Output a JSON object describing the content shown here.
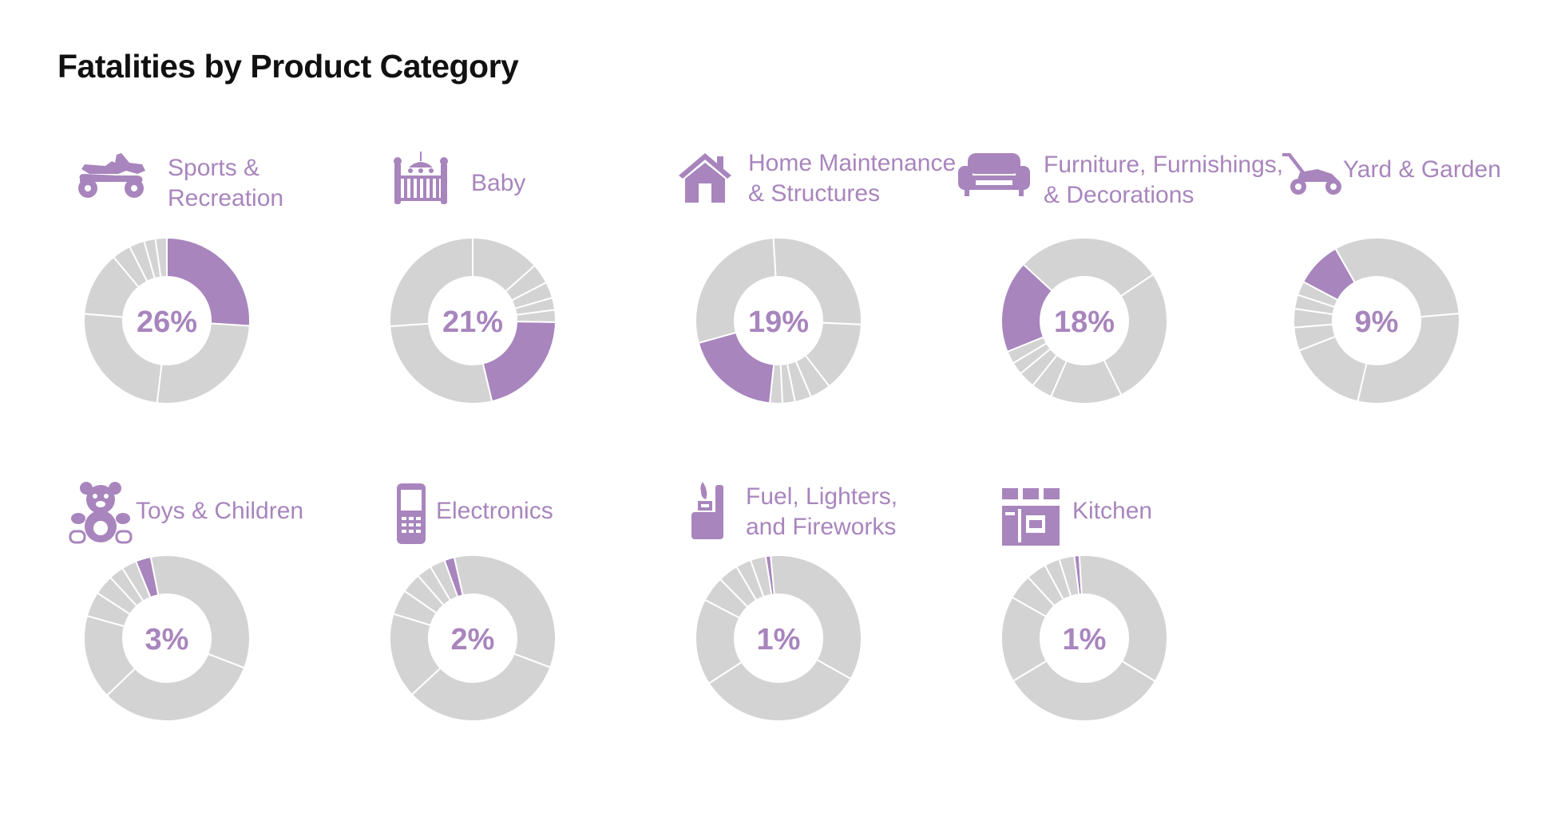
{
  "title": "Fatalities by Product Category",
  "colors": {
    "highlight": "#a885bd",
    "segment": "#d3d3d4",
    "divider": "#ffffff"
  },
  "chart_data": {
    "type": "pie",
    "title": "Fatalities by Product Category",
    "categories": [
      "Sports & Recreation",
      "Baby",
      "Home Maintenance & Structures",
      "Furniture, Furnishings, & Decorations",
      "Yard & Garden",
      "Toys & Children",
      "Electronics",
      "Fuel, Lighters, and Fireworks",
      "Kitchen"
    ],
    "values": [
      26,
      21,
      19,
      18,
      9,
      3,
      2,
      1,
      1
    ]
  },
  "cards": [
    {
      "label_lines": [
        "Sports &",
        "Recreation"
      ],
      "pct_label": "26%",
      "icon": "atv-icon"
    },
    {
      "label_lines": [
        "Baby"
      ],
      "pct_label": "21%",
      "icon": "crib-icon"
    },
    {
      "label_lines": [
        "Home Maintenance",
        "& Structures"
      ],
      "pct_label": "19%",
      "icon": "house-icon"
    },
    {
      "label_lines": [
        "Furniture, Furnishings,",
        "& Decorations"
      ],
      "pct_label": "18%",
      "icon": "sofa-icon"
    },
    {
      "label_lines": [
        "Yard & Garden"
      ],
      "pct_label": "9%",
      "icon": "lawnmower-icon"
    },
    {
      "label_lines": [
        "Toys & Children"
      ],
      "pct_label": "3%",
      "icon": "teddy-bear-icon"
    },
    {
      "label_lines": [
        "Electronics"
      ],
      "pct_label": "2%",
      "icon": "phone-icon"
    },
    {
      "label_lines": [
        "Fuel, Lighters,",
        "and Fireworks"
      ],
      "pct_label": "1%",
      "icon": "lighter-icon"
    },
    {
      "label_lines": [
        "Kitchen"
      ],
      "pct_label": "1%",
      "icon": "kitchen-cabinet-icon"
    }
  ]
}
